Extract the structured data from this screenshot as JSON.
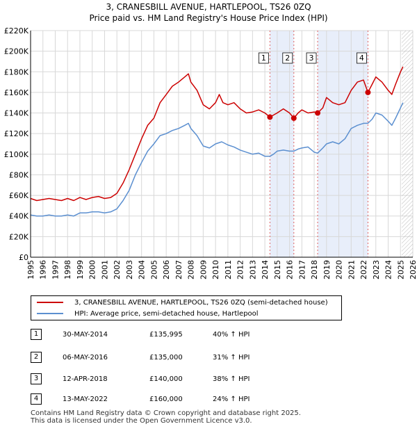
{
  "chart_data": {
    "type": "line",
    "title": "3, CRANESBILL AVENUE, HARTLEPOOL, TS26 0ZQ",
    "subtitle": "Price paid vs. HM Land Registry's House Price Index (HPI)",
    "xlim": [
      1995,
      2026
    ],
    "ylim": [
      0,
      220000
    ],
    "x_ticks": [
      "1995",
      "1996",
      "1997",
      "1998",
      "1999",
      "2000",
      "2001",
      "2002",
      "2003",
      "2004",
      "2005",
      "2006",
      "2007",
      "2008",
      "2009",
      "2010",
      "2011",
      "2012",
      "2013",
      "2014",
      "2015",
      "2016",
      "2017",
      "2018",
      "2019",
      "2020",
      "2021",
      "2022",
      "2023",
      "2024",
      "2025",
      "2026"
    ],
    "y_ticks": [
      {
        "value": 0,
        "label": "£0"
      },
      {
        "value": 20000,
        "label": "£20K"
      },
      {
        "value": 40000,
        "label": "£40K"
      },
      {
        "value": 60000,
        "label": "£60K"
      },
      {
        "value": 80000,
        "label": "£80K"
      },
      {
        "value": 100000,
        "label": "£100K"
      },
      {
        "value": 120000,
        "label": "£120K"
      },
      {
        "value": 140000,
        "label": "£140K"
      },
      {
        "value": 160000,
        "label": "£160K"
      },
      {
        "value": 180000,
        "label": "£180K"
      },
      {
        "value": 200000,
        "label": "£200K"
      },
      {
        "value": 220000,
        "label": "£220K"
      }
    ],
    "grid": true,
    "series": [
      {
        "name": "3, CRANESBILL AVENUE, HARTLEPOOL, TS26 0ZQ (semi-detached house)",
        "color": "#cc0000",
        "points": [
          [
            1995,
            57000
          ],
          [
            1995.5,
            55000
          ],
          [
            1996,
            56000
          ],
          [
            1996.5,
            57000
          ],
          [
            1997,
            56000
          ],
          [
            1997.5,
            55000
          ],
          [
            1998,
            57000
          ],
          [
            1998.5,
            55000
          ],
          [
            1999,
            58000
          ],
          [
            1999.5,
            56000
          ],
          [
            2000,
            58000
          ],
          [
            2000.5,
            59000
          ],
          [
            2001,
            57000
          ],
          [
            2001.5,
            58000
          ],
          [
            2002,
            62000
          ],
          [
            2002.5,
            72000
          ],
          [
            2003,
            85000
          ],
          [
            2003.5,
            100000
          ],
          [
            2004,
            115000
          ],
          [
            2004.5,
            128000
          ],
          [
            2005,
            135000
          ],
          [
            2005.5,
            150000
          ],
          [
            2006,
            158000
          ],
          [
            2006.5,
            166000
          ],
          [
            2007,
            170000
          ],
          [
            2007.5,
            175000
          ],
          [
            2007.8,
            178000
          ],
          [
            2008,
            170000
          ],
          [
            2008.5,
            162000
          ],
          [
            2009,
            148000
          ],
          [
            2009.5,
            144000
          ],
          [
            2010,
            150000
          ],
          [
            2010.3,
            158000
          ],
          [
            2010.6,
            150000
          ],
          [
            2011,
            148000
          ],
          [
            2011.5,
            150000
          ],
          [
            2012,
            144000
          ],
          [
            2012.5,
            140000
          ],
          [
            2013,
            141000
          ],
          [
            2013.5,
            143000
          ],
          [
            2014,
            140000
          ],
          [
            2014.41,
            135995
          ],
          [
            2014.7,
            138000
          ],
          [
            2015,
            140000
          ],
          [
            2015.5,
            144000
          ],
          [
            2016,
            140000
          ],
          [
            2016.35,
            135000
          ],
          [
            2016.7,
            140000
          ],
          [
            2017,
            143000
          ],
          [
            2017.5,
            140000
          ],
          [
            2018,
            141000
          ],
          [
            2018.28,
            140000
          ],
          [
            2018.7,
            145000
          ],
          [
            2019,
            155000
          ],
          [
            2019.5,
            150000
          ],
          [
            2020,
            148000
          ],
          [
            2020.5,
            150000
          ],
          [
            2021,
            162000
          ],
          [
            2021.5,
            170000
          ],
          [
            2022,
            172000
          ],
          [
            2022.36,
            160000
          ],
          [
            2022.7,
            168000
          ],
          [
            2023,
            175000
          ],
          [
            2023.5,
            170000
          ],
          [
            2024,
            162000
          ],
          [
            2024.3,
            158000
          ],
          [
            2024.6,
            168000
          ],
          [
            2025,
            180000
          ],
          [
            2025.2,
            185000
          ]
        ]
      },
      {
        "name": "HPI: Average price, semi-detached house, Hartlepool",
        "color": "#5b8fd0",
        "points": [
          [
            1995,
            41000
          ],
          [
            1995.5,
            40000
          ],
          [
            1996,
            40000
          ],
          [
            1996.5,
            41000
          ],
          [
            1997,
            40000
          ],
          [
            1997.5,
            40000
          ],
          [
            1998,
            41000
          ],
          [
            1998.5,
            40000
          ],
          [
            1999,
            43000
          ],
          [
            1999.5,
            43000
          ],
          [
            2000,
            44000
          ],
          [
            2000.5,
            44000
          ],
          [
            2001,
            43000
          ],
          [
            2001.5,
            44000
          ],
          [
            2002,
            47000
          ],
          [
            2002.5,
            55000
          ],
          [
            2003,
            65000
          ],
          [
            2003.5,
            80000
          ],
          [
            2004,
            92000
          ],
          [
            2004.5,
            103000
          ],
          [
            2005,
            110000
          ],
          [
            2005.5,
            118000
          ],
          [
            2006,
            120000
          ],
          [
            2006.5,
            123000
          ],
          [
            2007,
            125000
          ],
          [
            2007.5,
            128000
          ],
          [
            2007.8,
            130000
          ],
          [
            2008,
            125000
          ],
          [
            2008.5,
            118000
          ],
          [
            2009,
            108000
          ],
          [
            2009.5,
            106000
          ],
          [
            2010,
            110000
          ],
          [
            2010.5,
            112000
          ],
          [
            2011,
            109000
          ],
          [
            2011.5,
            107000
          ],
          [
            2012,
            104000
          ],
          [
            2012.5,
            102000
          ],
          [
            2013,
            100000
          ],
          [
            2013.5,
            101000
          ],
          [
            2014,
            98000
          ],
          [
            2014.41,
            98000
          ],
          [
            2014.7,
            100000
          ],
          [
            2015,
            103000
          ],
          [
            2015.5,
            104000
          ],
          [
            2016,
            103000
          ],
          [
            2016.35,
            103000
          ],
          [
            2016.7,
            105000
          ],
          [
            2017,
            106000
          ],
          [
            2017.5,
            107000
          ],
          [
            2018,
            102000
          ],
          [
            2018.28,
            101000
          ],
          [
            2018.7,
            106000
          ],
          [
            2019,
            110000
          ],
          [
            2019.5,
            112000
          ],
          [
            2020,
            110000
          ],
          [
            2020.5,
            115000
          ],
          [
            2021,
            125000
          ],
          [
            2021.5,
            128000
          ],
          [
            2022,
            130000
          ],
          [
            2022.36,
            130000
          ],
          [
            2022.7,
            134000
          ],
          [
            2023,
            140000
          ],
          [
            2023.5,
            138000
          ],
          [
            2024,
            132000
          ],
          [
            2024.3,
            128000
          ],
          [
            2024.6,
            135000
          ],
          [
            2025,
            145000
          ],
          [
            2025.2,
            150000
          ]
        ]
      }
    ],
    "sales": [
      {
        "num": "1",
        "x": 2014.41,
        "price": 135995
      },
      {
        "num": "2",
        "x": 2016.35,
        "price": 135000
      },
      {
        "num": "3",
        "x": 2018.28,
        "price": 140000
      },
      {
        "num": "4",
        "x": 2022.36,
        "price": 160000
      }
    ],
    "shaded_ranges": [
      [
        2014.41,
        2016.35
      ],
      [
        2018.28,
        2022.36
      ]
    ],
    "forecast_from": 2025.1
  },
  "legend": {
    "property_label": "3, CRANESBILL AVENUE, HARTLEPOOL, TS26 0ZQ (semi-detached house)",
    "hpi_label": "HPI: Average price, semi-detached house, Hartlepool"
  },
  "sales_table": [
    {
      "num": "1",
      "date": "30-MAY-2014",
      "price": "£135,995",
      "hpi": "40% ↑ HPI"
    },
    {
      "num": "2",
      "date": "06-MAY-2016",
      "price": "£135,000",
      "hpi": "31% ↑ HPI"
    },
    {
      "num": "3",
      "date": "12-APR-2018",
      "price": "£140,000",
      "hpi": "38% ↑ HPI"
    },
    {
      "num": "4",
      "date": "13-MAY-2022",
      "price": "£160,000",
      "hpi": "24% ↑ HPI"
    }
  ],
  "footer": {
    "line1": "Contains HM Land Registry data © Crown copyright and database right 2025.",
    "line2": "This data is licensed under the Open Government Licence v3.0."
  },
  "colors": {
    "property": "#cc0000",
    "hpi": "#5b8fd0",
    "shade": "#e8eefa",
    "grid": "#d8d8d8"
  }
}
